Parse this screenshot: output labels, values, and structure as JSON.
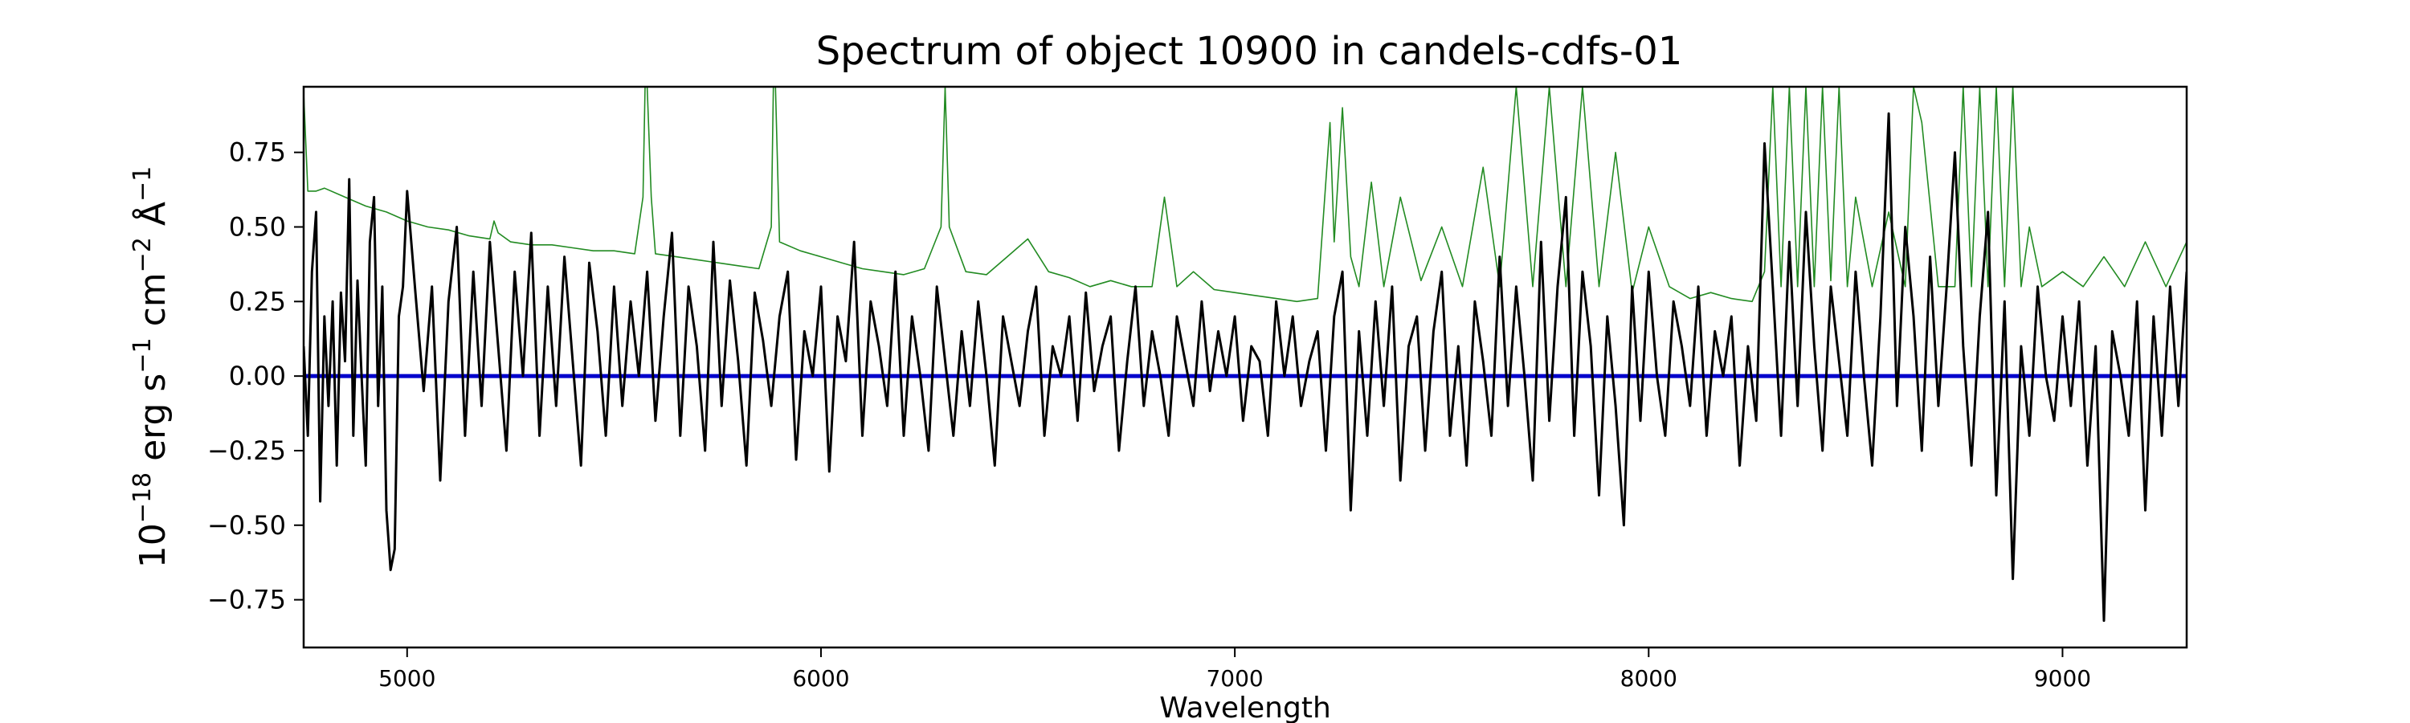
{
  "chart_data": {
    "type": "line",
    "title": "Spectrum of object 10900 in candels-cdfs-01",
    "xlabel": "Wavelength",
    "ylabel": {
      "base": "10",
      "exp": "−18",
      "unit_text": " erg s",
      "exp_s": "−1",
      "unit_cm": " cm",
      "exp_cm": "−2",
      "unit_ang": " Å",
      "exp_ang": "−1"
    },
    "xlim": [
      4750,
      9300
    ],
    "ylim": [
      -0.91,
      0.97
    ],
    "xticks": [
      5000,
      6000,
      7000,
      8000,
      9000
    ],
    "xtick_labels": [
      "5000",
      "6000",
      "7000",
      "8000",
      "9000"
    ],
    "yticks": [
      -0.75,
      -0.5,
      -0.25,
      0.0,
      0.25,
      0.5,
      0.75
    ],
    "ytick_labels": [
      "−0.75",
      "−0.50",
      "−0.25",
      "0.00",
      "0.25",
      "0.50",
      "0.75"
    ],
    "grid": false,
    "series": [
      {
        "role": "model",
        "color": "#0000cc",
        "x": [
          4750,
          9300
        ],
        "y": [
          0.0,
          0.0
        ]
      },
      {
        "role": "error",
        "color": "#228b22",
        "x": [
          4750,
          4760,
          4780,
          4800,
          4850,
          4900,
          4950,
          5000,
          5050,
          5100,
          5150,
          5200,
          5210,
          5220,
          5250,
          5300,
          5350,
          5400,
          5450,
          5500,
          5550,
          5570,
          5575,
          5580,
          5590,
          5600,
          5650,
          5700,
          5750,
          5800,
          5850,
          5880,
          5885,
          5890,
          5900,
          5950,
          6000,
          6050,
          6100,
          6150,
          6200,
          6250,
          6290,
          6300,
          6310,
          6350,
          6400,
          6450,
          6500,
          6550,
          6600,
          6650,
          6700,
          6750,
          6800,
          6830,
          6860,
          6900,
          6950,
          7000,
          7050,
          7100,
          7150,
          7200,
          7230,
          7240,
          7260,
          7280,
          7300,
          7330,
          7360,
          7400,
          7450,
          7500,
          7550,
          7600,
          7640,
          7680,
          7720,
          7760,
          7800,
          7840,
          7880,
          7920,
          7960,
          8000,
          8050,
          8100,
          8150,
          8200,
          8250,
          8280,
          8300,
          8320,
          8340,
          8360,
          8380,
          8400,
          8420,
          8440,
          8460,
          8480,
          8500,
          8540,
          8580,
          8620,
          8640,
          8660,
          8700,
          8740,
          8760,
          8780,
          8800,
          8820,
          8840,
          8860,
          8880,
          8900,
          8920,
          8950,
          9000,
          9050,
          9100,
          9150,
          9200,
          9250,
          9300
        ],
        "y": [
          0.95,
          0.62,
          0.62,
          0.63,
          0.6,
          0.57,
          0.55,
          0.52,
          0.5,
          0.49,
          0.47,
          0.46,
          0.52,
          0.48,
          0.45,
          0.44,
          0.44,
          0.43,
          0.42,
          0.42,
          0.41,
          0.6,
          0.97,
          0.97,
          0.6,
          0.41,
          0.4,
          0.39,
          0.38,
          0.37,
          0.36,
          0.5,
          0.97,
          0.97,
          0.45,
          0.42,
          0.4,
          0.38,
          0.36,
          0.35,
          0.34,
          0.36,
          0.5,
          0.97,
          0.5,
          0.35,
          0.34,
          0.4,
          0.46,
          0.35,
          0.33,
          0.3,
          0.32,
          0.3,
          0.3,
          0.6,
          0.3,
          0.35,
          0.29,
          0.28,
          0.27,
          0.26,
          0.25,
          0.26,
          0.85,
          0.45,
          0.9,
          0.4,
          0.3,
          0.65,
          0.3,
          0.6,
          0.32,
          0.5,
          0.3,
          0.7,
          0.3,
          0.97,
          0.3,
          0.97,
          0.3,
          0.97,
          0.3,
          0.75,
          0.28,
          0.5,
          0.3,
          0.26,
          0.28,
          0.26,
          0.25,
          0.35,
          0.97,
          0.3,
          0.97,
          0.3,
          0.97,
          0.3,
          0.97,
          0.32,
          0.97,
          0.3,
          0.6,
          0.3,
          0.55,
          0.3,
          0.97,
          0.85,
          0.3,
          0.3,
          0.97,
          0.3,
          0.97,
          0.3,
          0.97,
          0.3,
          0.97,
          0.3,
          0.5,
          0.3,
          0.35,
          0.3,
          0.4,
          0.3,
          0.45,
          0.3,
          0.45
        ]
      },
      {
        "role": "flux",
        "color": "#000000",
        "x": [
          4750,
          4760,
          4770,
          4780,
          4790,
          4800,
          4810,
          4820,
          4830,
          4840,
          4850,
          4860,
          4870,
          4880,
          4890,
          4900,
          4910,
          4920,
          4930,
          4940,
          4950,
          4960,
          4970,
          4980,
          4990,
          5000,
          5020,
          5040,
          5060,
          5080,
          5100,
          5120,
          5140,
          5160,
          5180,
          5200,
          5220,
          5240,
          5260,
          5280,
          5300,
          5320,
          5340,
          5360,
          5380,
          5400,
          5420,
          5440,
          5460,
          5480,
          5500,
          5520,
          5540,
          5560,
          5580,
          5600,
          5620,
          5640,
          5660,
          5680,
          5700,
          5720,
          5740,
          5760,
          5780,
          5800,
          5820,
          5840,
          5860,
          5880,
          5900,
          5920,
          5940,
          5960,
          5980,
          6000,
          6020,
          6040,
          6060,
          6080,
          6100,
          6120,
          6140,
          6160,
          6180,
          6200,
          6220,
          6240,
          6260,
          6280,
          6300,
          6320,
          6340,
          6360,
          6380,
          6400,
          6420,
          6440,
          6460,
          6480,
          6500,
          6520,
          6540,
          6560,
          6580,
          6600,
          6620,
          6640,
          6660,
          6680,
          6700,
          6720,
          6740,
          6760,
          6780,
          6800,
          6820,
          6840,
          6860,
          6880,
          6900,
          6920,
          6940,
          6960,
          6980,
          7000,
          7020,
          7040,
          7060,
          7080,
          7100,
          7120,
          7140,
          7160,
          7180,
          7200,
          7220,
          7240,
          7260,
          7280,
          7300,
          7320,
          7340,
          7360,
          7380,
          7400,
          7420,
          7440,
          7460,
          7480,
          7500,
          7520,
          7540,
          7560,
          7580,
          7600,
          7620,
          7640,
          7660,
          7680,
          7700,
          7720,
          7740,
          7760,
          7780,
          7800,
          7820,
          7840,
          7860,
          7880,
          7900,
          7920,
          7940,
          7960,
          7980,
          8000,
          8020,
          8040,
          8060,
          8080,
          8100,
          8120,
          8140,
          8160,
          8180,
          8200,
          8220,
          8240,
          8260,
          8280,
          8300,
          8320,
          8340,
          8360,
          8380,
          8400,
          8420,
          8440,
          8460,
          8480,
          8500,
          8520,
          8540,
          8560,
          8580,
          8600,
          8620,
          8640,
          8660,
          8680,
          8700,
          8720,
          8740,
          8760,
          8780,
          8800,
          8820,
          8840,
          8860,
          8880,
          8900,
          8920,
          8940,
          8960,
          8980,
          9000,
          9020,
          9040,
          9060,
          9080,
          9100,
          9120,
          9140,
          9160,
          9180,
          9200,
          9220,
          9240,
          9260,
          9280,
          9300
        ],
        "y": [
          0.1,
          -0.2,
          0.35,
          0.55,
          -0.42,
          0.2,
          -0.1,
          0.25,
          -0.3,
          0.28,
          0.05,
          0.66,
          -0.2,
          0.32,
          0.0,
          -0.3,
          0.45,
          0.6,
          -0.1,
          0.3,
          -0.45,
          -0.65,
          -0.58,
          0.2,
          0.3,
          0.62,
          0.28,
          -0.05,
          0.3,
          -0.35,
          0.25,
          0.5,
          -0.2,
          0.35,
          -0.1,
          0.45,
          0.1,
          -0.25,
          0.35,
          0.0,
          0.48,
          -0.2,
          0.3,
          -0.1,
          0.4,
          0.05,
          -0.3,
          0.38,
          0.15,
          -0.2,
          0.3,
          -0.1,
          0.25,
          0.0,
          0.35,
          -0.15,
          0.2,
          0.48,
          -0.2,
          0.3,
          0.1,
          -0.25,
          0.45,
          -0.1,
          0.32,
          0.05,
          -0.3,
          0.28,
          0.12,
          -0.1,
          0.2,
          0.35,
          -0.28,
          0.15,
          0.0,
          0.3,
          -0.32,
          0.2,
          0.05,
          0.45,
          -0.2,
          0.25,
          0.1,
          -0.1,
          0.35,
          -0.2,
          0.2,
          0.0,
          -0.25,
          0.3,
          0.05,
          -0.2,
          0.15,
          -0.1,
          0.25,
          0.0,
          -0.3,
          0.2,
          0.05,
          -0.1,
          0.15,
          0.3,
          -0.2,
          0.1,
          0.0,
          0.2,
          -0.15,
          0.28,
          -0.05,
          0.1,
          0.2,
          -0.25,
          0.05,
          0.3,
          -0.1,
          0.15,
          0.0,
          -0.2,
          0.2,
          0.05,
          -0.1,
          0.25,
          -0.05,
          0.15,
          0.0,
          0.2,
          -0.15,
          0.1,
          0.05,
          -0.2,
          0.25,
          0.0,
          0.2,
          -0.1,
          0.05,
          0.15,
          -0.25,
          0.2,
          0.35,
          -0.45,
          0.15,
          -0.2,
          0.25,
          -0.1,
          0.3,
          -0.35,
          0.1,
          0.2,
          -0.25,
          0.15,
          0.35,
          -0.2,
          0.1,
          -0.3,
          0.25,
          0.05,
          -0.2,
          0.4,
          -0.1,
          0.3,
          0.0,
          -0.35,
          0.45,
          -0.15,
          0.3,
          0.6,
          -0.2,
          0.35,
          0.1,
          -0.4,
          0.2,
          -0.1,
          -0.5,
          0.3,
          -0.15,
          0.35,
          0.0,
          -0.2,
          0.25,
          0.1,
          -0.1,
          0.3,
          -0.2,
          0.15,
          0.0,
          0.2,
          -0.3,
          0.1,
          -0.15,
          0.78,
          0.3,
          -0.2,
          0.45,
          -0.1,
          0.55,
          0.1,
          -0.25,
          0.3,
          0.05,
          -0.2,
          0.35,
          0.0,
          -0.3,
          0.2,
          0.88,
          -0.1,
          0.5,
          0.2,
          -0.25,
          0.4,
          -0.1,
          0.3,
          0.75,
          0.1,
          -0.3,
          0.2,
          0.55,
          -0.4,
          0.25,
          -0.68,
          0.1,
          -0.2,
          0.3,
          0.0,
          -0.15,
          0.2,
          -0.1,
          0.25,
          -0.3,
          0.1,
          -0.82,
          0.15,
          0.0,
          -0.2,
          0.25,
          -0.45,
          0.2,
          -0.2,
          0.3,
          -0.1,
          0.35
        ]
      }
    ]
  }
}
